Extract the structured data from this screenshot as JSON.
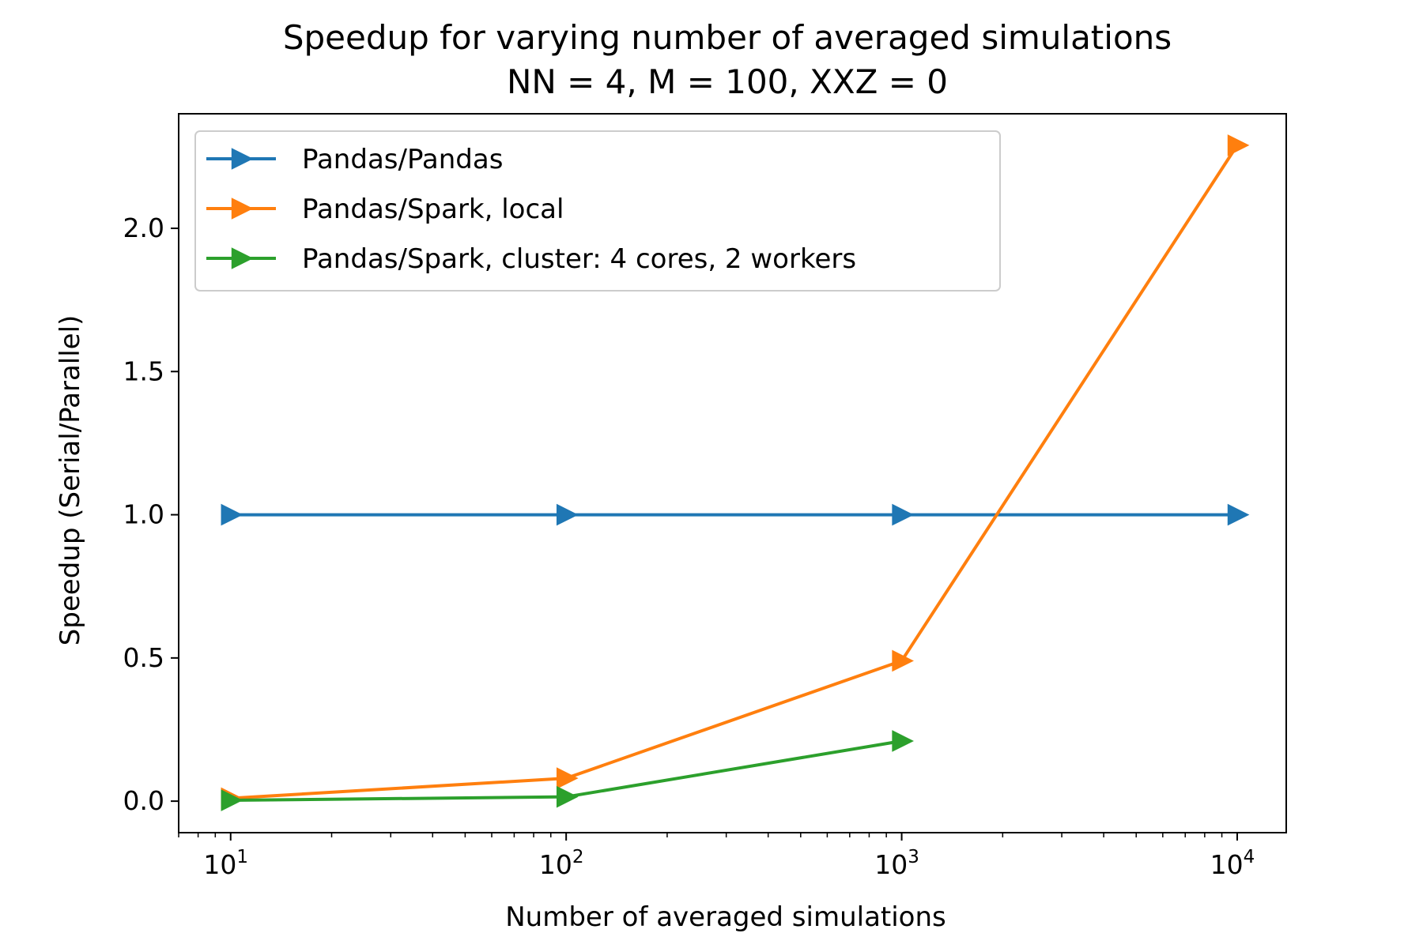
{
  "chart_data": {
    "type": "line",
    "title": "Speedup for varying number of averaged simulations",
    "subtitle": "NN = 4, M = 100, XXZ = 0",
    "xlabel": "Number of averaged simulations",
    "ylabel": "Speedup (Serial/Parallel)",
    "xscale": "log",
    "xlim": [
      7,
      14000
    ],
    "ylim": [
      -0.11,
      2.4
    ],
    "x_ticks": [
      {
        "value": 10,
        "base": "10",
        "exp": "1"
      },
      {
        "value": 100,
        "base": "10",
        "exp": "2"
      },
      {
        "value": 1000,
        "base": "10",
        "exp": "3"
      },
      {
        "value": 10000,
        "base": "10",
        "exp": "4"
      }
    ],
    "y_ticks": [
      {
        "value": 0.0,
        "label": "0.0"
      },
      {
        "value": 0.5,
        "label": "0.5"
      },
      {
        "value": 1.0,
        "label": "1.0"
      },
      {
        "value": 1.5,
        "label": "1.5"
      },
      {
        "value": 2.0,
        "label": "2.0"
      }
    ],
    "grid": false,
    "legend_position": "upper-left",
    "marker": "triangle-right",
    "series": [
      {
        "name": "Pandas/Pandas",
        "color": "#1f77b4",
        "x": [
          10,
          100,
          1000,
          10000
        ],
        "y": [
          1.0,
          1.0,
          1.0,
          1.0
        ]
      },
      {
        "name": "Pandas/Spark, local",
        "color": "#ff7f0e",
        "x": [
          10,
          100,
          1000,
          10000
        ],
        "y": [
          0.01,
          0.08,
          0.49,
          2.29
        ]
      },
      {
        "name": "Pandas/Spark, cluster: 4 cores, 2 workers",
        "color": "#2ca02c",
        "x": [
          10,
          100,
          1000
        ],
        "y": [
          0.003,
          0.015,
          0.21
        ]
      }
    ]
  }
}
